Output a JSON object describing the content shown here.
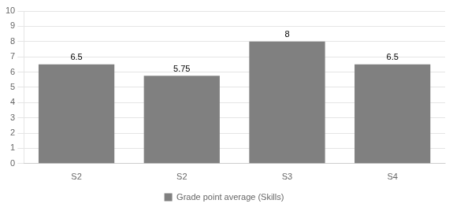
{
  "chart_data": {
    "type": "bar",
    "categories": [
      "S2",
      "S2",
      "S3",
      "S4"
    ],
    "series": [
      {
        "name": "Grade point average (Skills)",
        "color": "#808080",
        "values": [
          6.5,
          5.75,
          8,
          6.5
        ]
      }
    ],
    "ylim": [
      0,
      10
    ],
    "yticks": [
      0,
      1,
      2,
      3,
      4,
      5,
      6,
      7,
      8,
      9,
      10
    ],
    "grid": true,
    "legend": "bottom",
    "data_labels": true
  }
}
